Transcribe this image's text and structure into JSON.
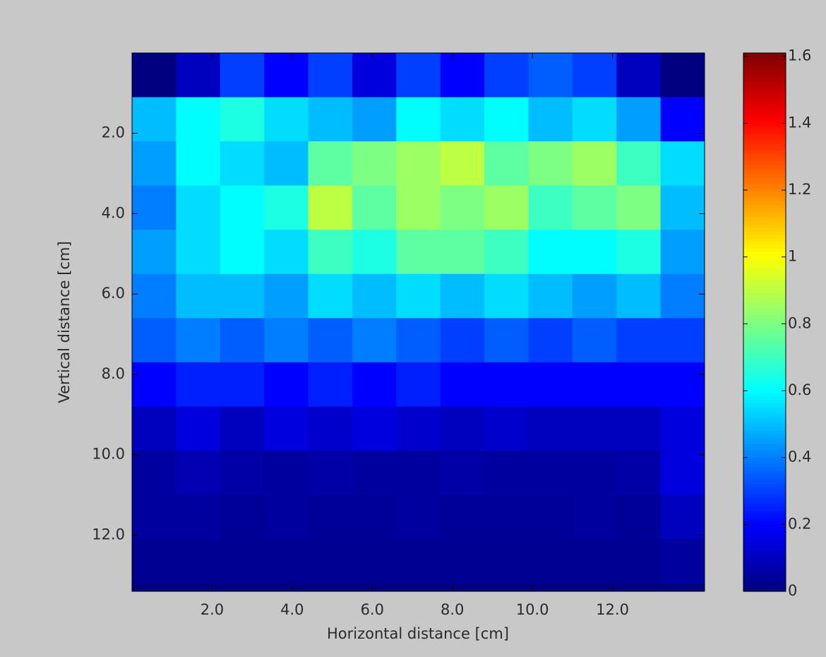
{
  "chart_data": {
    "type": "heatmap",
    "xlabel": "Horizontal distance [cm]",
    "ylabel": "Vertical distance [cm]",
    "x": [
      0.55,
      1.65,
      2.75,
      3.85,
      4.95,
      6.05,
      7.15,
      8.25,
      9.35,
      10.45,
      11.55,
      12.65,
      13.75
    ],
    "y": [
      0.55,
      1.65,
      2.75,
      3.85,
      4.95,
      6.05,
      7.15,
      8.25,
      9.35,
      10.45,
      11.55,
      12.65
    ],
    "z": [
      [
        0,
        0.1,
        0.3,
        0.2,
        0.3,
        0.15,
        0.3,
        0.2,
        0.3,
        0.35,
        0.3,
        0.1,
        0
      ],
      [
        0.5,
        0.6,
        0.65,
        0.55,
        0.5,
        0.45,
        0.6,
        0.55,
        0.6,
        0.5,
        0.55,
        0.45,
        0.2
      ],
      [
        0.45,
        0.6,
        0.55,
        0.5,
        0.75,
        0.8,
        0.85,
        0.9,
        0.75,
        0.8,
        0.85,
        0.7,
        0.55
      ],
      [
        0.4,
        0.55,
        0.6,
        0.65,
        0.9,
        0.75,
        0.85,
        0.8,
        0.85,
        0.7,
        0.75,
        0.8,
        0.5
      ],
      [
        0.45,
        0.55,
        0.6,
        0.55,
        0.7,
        0.65,
        0.75,
        0.75,
        0.7,
        0.6,
        0.6,
        0.65,
        0.45
      ],
      [
        0.4,
        0.5,
        0.5,
        0.45,
        0.55,
        0.5,
        0.55,
        0.5,
        0.55,
        0.5,
        0.45,
        0.5,
        0.4
      ],
      [
        0.35,
        0.4,
        0.35,
        0.4,
        0.35,
        0.4,
        0.35,
        0.3,
        0.35,
        0.3,
        0.35,
        0.3,
        0.3
      ],
      [
        0.2,
        0.25,
        0.25,
        0.2,
        0.25,
        0.2,
        0.25,
        0.2,
        0.2,
        0.2,
        0.2,
        0.2,
        0.2
      ],
      [
        0.1,
        0.15,
        0.1,
        0.15,
        0.12,
        0.15,
        0.12,
        0.1,
        0.12,
        0.1,
        0.1,
        0.1,
        0.15
      ],
      [
        0.05,
        0.08,
        0.06,
        0.05,
        0.06,
        0.05,
        0.05,
        0.06,
        0.05,
        0.05,
        0.05,
        0.06,
        0.15
      ],
      [
        0.05,
        0.05,
        0.04,
        0.05,
        0.04,
        0.04,
        0.05,
        0.04,
        0.04,
        0.04,
        0.05,
        0.04,
        0.1
      ],
      [
        0.03,
        0.03,
        0.03,
        0.03,
        0.03,
        0.03,
        0.03,
        0.03,
        0.03,
        0.03,
        0.03,
        0.03,
        0.05
      ]
    ],
    "colormap": "jet",
    "xlim": [
      0,
      14.3
    ],
    "ylim": [
      0,
      13.4
    ],
    "yreversed": true,
    "xticks": [
      {
        "value": 2,
        "label": "2.0"
      },
      {
        "value": 4,
        "label": "4.0"
      },
      {
        "value": 6,
        "label": "6.0"
      },
      {
        "value": 8,
        "label": "8.0"
      },
      {
        "value": 10,
        "label": "10.0"
      },
      {
        "value": 12,
        "label": "12.0"
      }
    ],
    "yticks": [
      {
        "value": 2,
        "label": "2.0"
      },
      {
        "value": 4,
        "label": "4.0"
      },
      {
        "value": 6,
        "label": "6.0"
      },
      {
        "value": 8,
        "label": "8.0"
      },
      {
        "value": 10,
        "label": "10.0"
      },
      {
        "value": 12,
        "label": "12.0"
      }
    ],
    "clim": [
      0,
      1.61
    ],
    "cticks": [
      0,
      0.2,
      0.4,
      0.6,
      0.8,
      1,
      1.2,
      1.4,
      1.6
    ]
  }
}
